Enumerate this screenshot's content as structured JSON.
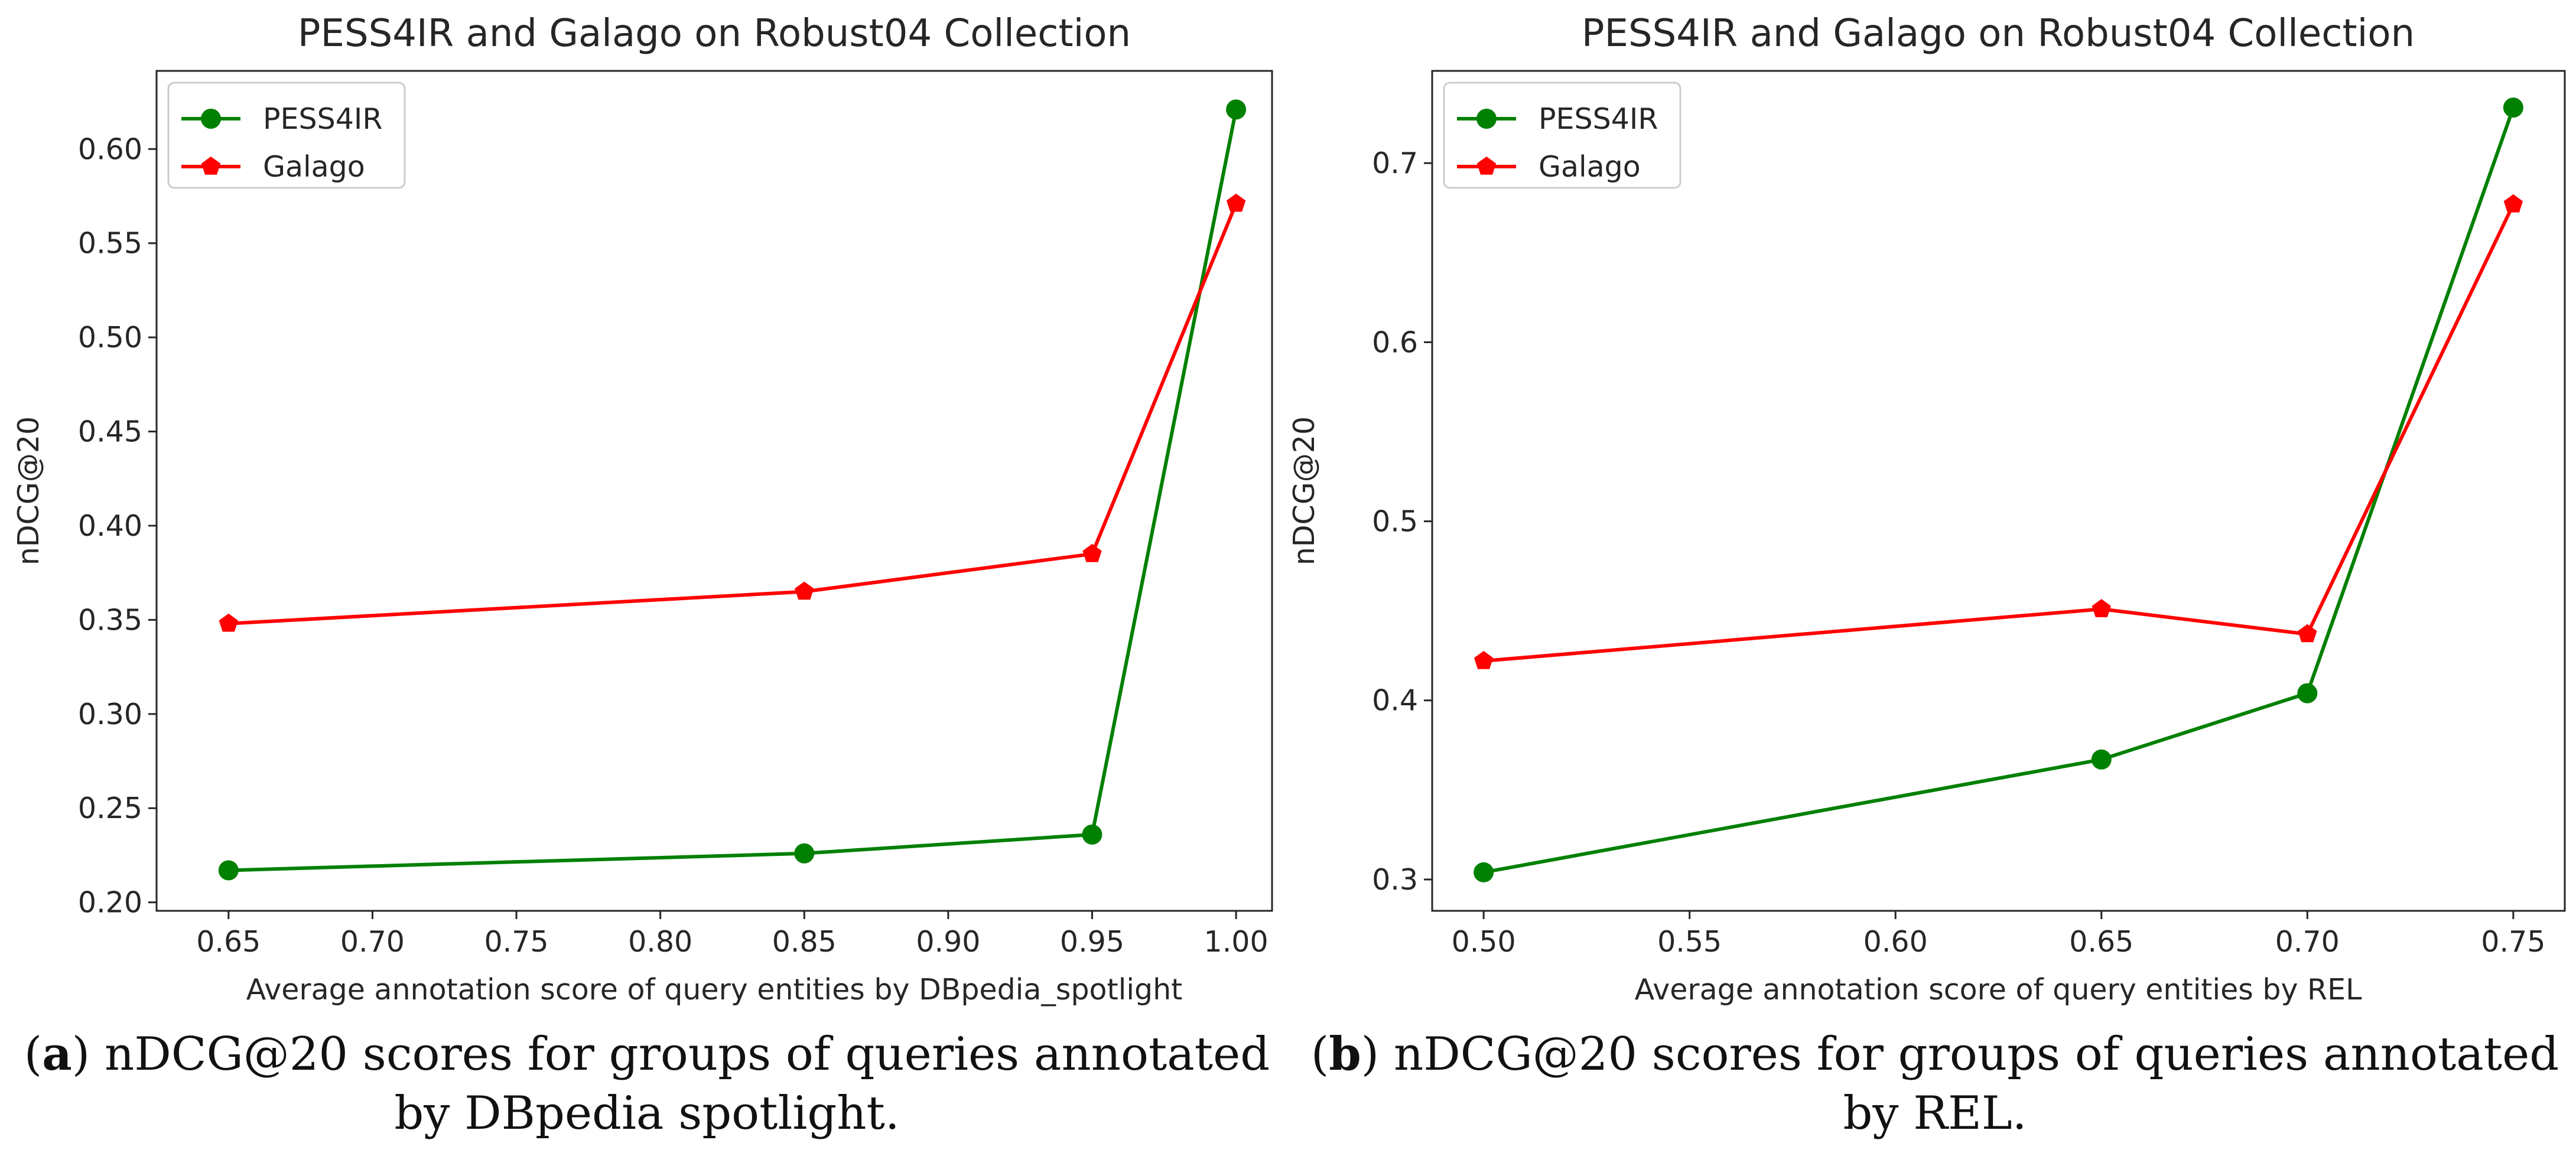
{
  "chart_data": [
    {
      "type": "line",
      "title": "PESS4IR and Galago on Robust04 Collection",
      "xlabel": "Average annotation score of query entities by DBpedia_spotlight",
      "ylabel": "nDCG@20",
      "xlim": [
        0.625,
        1.0125
      ],
      "ylim": [
        0.1955,
        0.6415
      ],
      "xticks": [
        0.65,
        0.7,
        0.75,
        0.8,
        0.85,
        0.9,
        0.95,
        1.0
      ],
      "xtick_labels": [
        "0.65",
        "0.70",
        "0.75",
        "0.80",
        "0.85",
        "0.90",
        "0.95",
        "1.00"
      ],
      "yticks": [
        0.2,
        0.25,
        0.3,
        0.35,
        0.4,
        0.45,
        0.5,
        0.55,
        0.6
      ],
      "ytick_labels": [
        "0.20",
        "0.25",
        "0.30",
        "0.35",
        "0.40",
        "0.45",
        "0.50",
        "0.55",
        "0.60"
      ],
      "legend_position": "top-left",
      "grid": false,
      "series": [
        {
          "name": "PESS4IR",
          "color": "#008000",
          "marker": "circle",
          "x": [
            0.65,
            0.85,
            0.95,
            1.0
          ],
          "y": [
            0.217,
            0.226,
            0.236,
            0.621
          ]
        },
        {
          "name": "Galago",
          "color": "#ff0000",
          "marker": "pentagon",
          "x": [
            0.65,
            0.85,
            0.95,
            1.0
          ],
          "y": [
            0.348,
            0.365,
            0.385,
            0.571
          ]
        }
      ]
    },
    {
      "type": "line",
      "title": "PESS4IR and Galago on Robust04 Collection",
      "xlabel": "Average annotation score of query entities by REL",
      "ylabel": "nDCG@20",
      "xlim": [
        0.4875,
        0.7625
      ],
      "ylim": [
        0.2825,
        0.7515
      ],
      "xticks": [
        0.5,
        0.55,
        0.6,
        0.65,
        0.7,
        0.75
      ],
      "xtick_labels": [
        "0.50",
        "0.55",
        "0.60",
        "0.65",
        "0.70",
        "0.75"
      ],
      "yticks": [
        0.3,
        0.4,
        0.5,
        0.6,
        0.7
      ],
      "ytick_labels": [
        "0.3",
        "0.4",
        "0.5",
        "0.6",
        "0.7"
      ],
      "legend_position": "top-left",
      "grid": false,
      "series": [
        {
          "name": "PESS4IR",
          "color": "#008000",
          "marker": "circle",
          "x": [
            0.5,
            0.65,
            0.7,
            0.75
          ],
          "y": [
            0.304,
            0.367,
            0.404,
            0.731
          ]
        },
        {
          "name": "Galago",
          "color": "#ff0000",
          "marker": "pentagon",
          "x": [
            0.5,
            0.65,
            0.7,
            0.75
          ],
          "y": [
            0.422,
            0.451,
            0.437,
            0.677
          ]
        }
      ]
    }
  ],
  "captions": [
    {
      "label": "a",
      "text": "nDCG@20 scores for groups of queries annotated by DBpedia spotlight."
    },
    {
      "label": "b",
      "text": "nDCG@20 scores for groups of queries annotated by REL."
    }
  ]
}
